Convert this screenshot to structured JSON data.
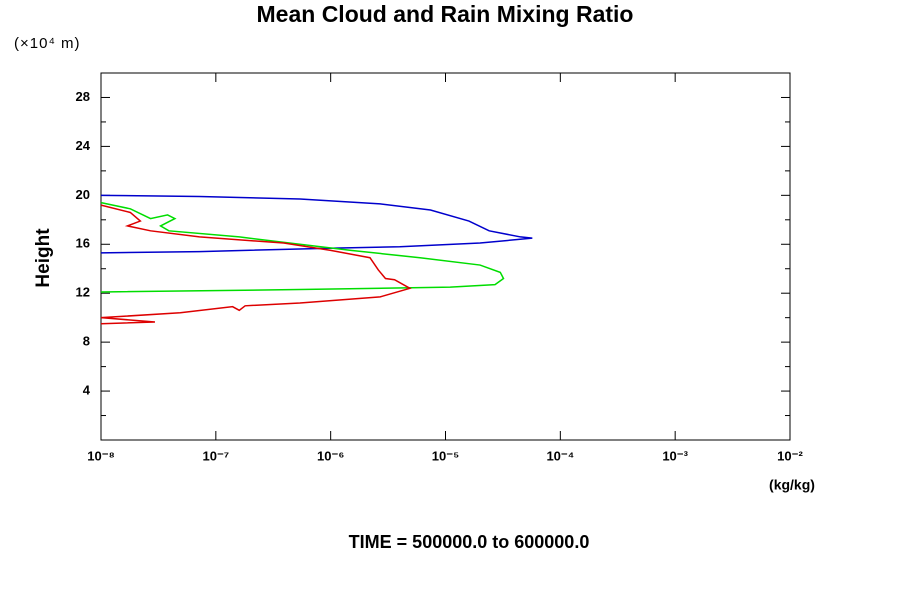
{
  "chart_data": {
    "type": "line",
    "title": "Mean Cloud and Rain Mixing Ratio",
    "y_unit": "(×10⁴ m)",
    "ylabel": "Height",
    "xlabel": "(kg/kg)",
    "subtitle": "TIME = 500000.0 to 600000.0",
    "xscale": "log",
    "xlim": [
      1e-08,
      0.01
    ],
    "xticks": [
      {
        "value": 1e-08,
        "label": "10⁻⁸"
      },
      {
        "value": 1e-07,
        "label": "10⁻⁷"
      },
      {
        "value": 1e-06,
        "label": "10⁻⁶"
      },
      {
        "value": 1e-05,
        "label": "10⁻⁵"
      },
      {
        "value": 0.0001,
        "label": "10⁻⁴"
      },
      {
        "value": 0.001,
        "label": "10⁻³"
      },
      {
        "value": 0.01,
        "label": "10⁻²"
      }
    ],
    "ylim": [
      0,
      30
    ],
    "yticks": [
      4,
      8,
      12,
      16,
      20,
      24,
      28
    ],
    "yminorticks": [
      2,
      6,
      10,
      14,
      18,
      22,
      26
    ],
    "grid": false,
    "series": [
      {
        "color": "#0000cc",
        "x": [
          1e-08,
          7.2e-08,
          5.4e-07,
          2.7e-06,
          7.4e-06,
          1.6e-05,
          2.4e-05,
          4.5e-05,
          5.7e-05,
          2e-05,
          4e-06,
          1.2e-06,
          7.2e-08,
          1e-08
        ],
        "values": [
          20.0,
          19.9,
          19.7,
          19.3,
          18.8,
          17.9,
          17.1,
          16.6,
          16.5,
          16.1,
          15.8,
          15.7,
          15.4,
          15.3
        ]
      },
      {
        "color": "#00dd00",
        "x": [
          1e-08,
          1.8e-08,
          2.7e-08,
          3.8e-08,
          4.4e-08,
          3.3e-08,
          3.9e-08,
          1.6e-07,
          1.5e-06,
          6e-06,
          2e-05,
          3e-05,
          3.2e-05,
          2.7e-05,
          1.1e-05,
          5.4e-07,
          1e-08
        ],
        "values": [
          19.4,
          18.9,
          18.1,
          18.4,
          18.1,
          17.5,
          17.1,
          16.6,
          15.5,
          14.9,
          14.3,
          13.7,
          13.2,
          12.7,
          12.5,
          12.3,
          12.1
        ]
      },
      {
        "color": "#dd0000",
        "x": [
          1e-08,
          1.8e-08,
          2.2e-08,
          1.7e-08,
          2.7e-08,
          7.2e-08,
          3.9e-07,
          1e-06,
          2.2e-06,
          2.6e-06,
          3e-06,
          3.6e-06,
          4.9e-06,
          2.7e-06,
          5.4e-07,
          1.8e-07,
          1.6e-07,
          1.4e-07,
          4.9e-08,
          1e-08,
          2.95e-08,
          1e-08
        ],
        "values": [
          19.2,
          18.6,
          17.9,
          17.5,
          17.1,
          16.6,
          16.1,
          15.5,
          14.9,
          13.9,
          13.2,
          13.1,
          12.4,
          11.7,
          11.2,
          10.97,
          10.6,
          10.9,
          10.4,
          10.0,
          9.65,
          9.5
        ]
      }
    ]
  }
}
